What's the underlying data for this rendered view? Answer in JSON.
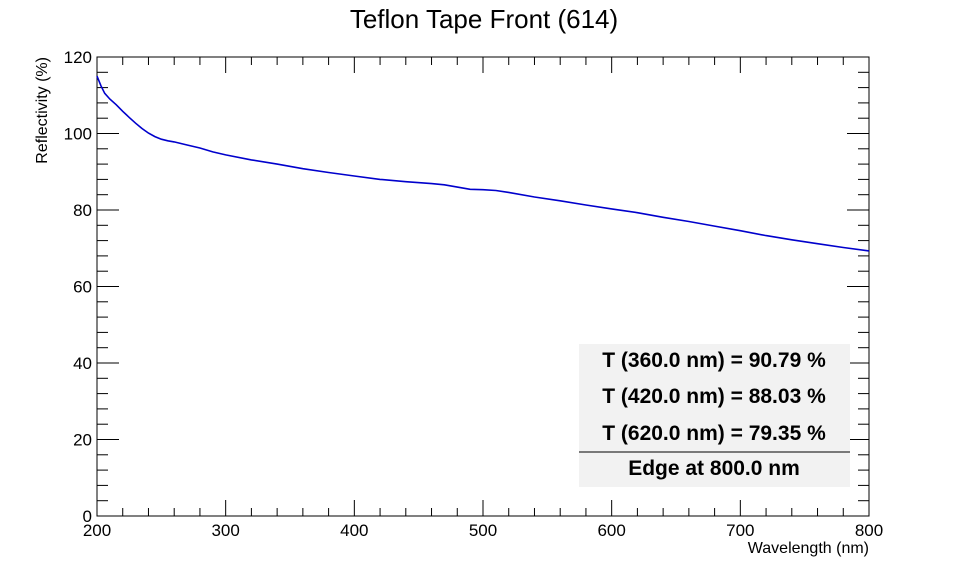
{
  "chart_data": {
    "type": "line",
    "title": "Teflon Tape Front (614)",
    "xlabel": "Wavelength (nm)",
    "ylabel": "Reflectivity (%)",
    "xlim": [
      200,
      800
    ],
    "ylim": [
      0,
      120
    ],
    "x_ticks": [
      "200",
      "300",
      "400",
      "500",
      "600",
      "700",
      "800"
    ],
    "y_ticks": [
      "0",
      "20",
      "40",
      "60",
      "80",
      "100",
      "120"
    ],
    "grid": false,
    "line_color": "#0000cc",
    "series": [
      {
        "x": [
          200,
          203,
          206,
          210,
          215,
          220,
          225,
          230,
          235,
          240,
          245,
          250,
          255,
          260,
          270,
          280,
          290,
          300,
          320,
          340,
          360,
          380,
          400,
          420,
          440,
          460,
          470,
          480,
          490,
          500,
          510,
          520,
          540,
          560,
          580,
          600,
          620,
          640,
          660,
          680,
          700,
          720,
          740,
          760,
          780,
          800
        ],
        "y": [
          115,
          112.5,
          110.5,
          109,
          107.5,
          105.8,
          104.2,
          102.7,
          101.3,
          100.1,
          99.2,
          98.5,
          98.1,
          97.8,
          97,
          96.2,
          95.2,
          94.4,
          93.1,
          92,
          90.8,
          89.8,
          88.9,
          88,
          87.4,
          86.9,
          86.6,
          86,
          85.4,
          85.3,
          85.1,
          84.6,
          83.4,
          82.4,
          81.3,
          80.3,
          79.3,
          78.1,
          77,
          75.8,
          74.6,
          73.3,
          72.2,
          71.2,
          70.2,
          69.3
        ]
      }
    ]
  },
  "legend": {
    "lines": [
      "T (360.0 nm) = 90.79 %",
      "T (420.0 nm) = 88.03 %",
      "T (620.0 nm) = 79.35 %"
    ],
    "footer": "Edge at 800.0 nm"
  }
}
